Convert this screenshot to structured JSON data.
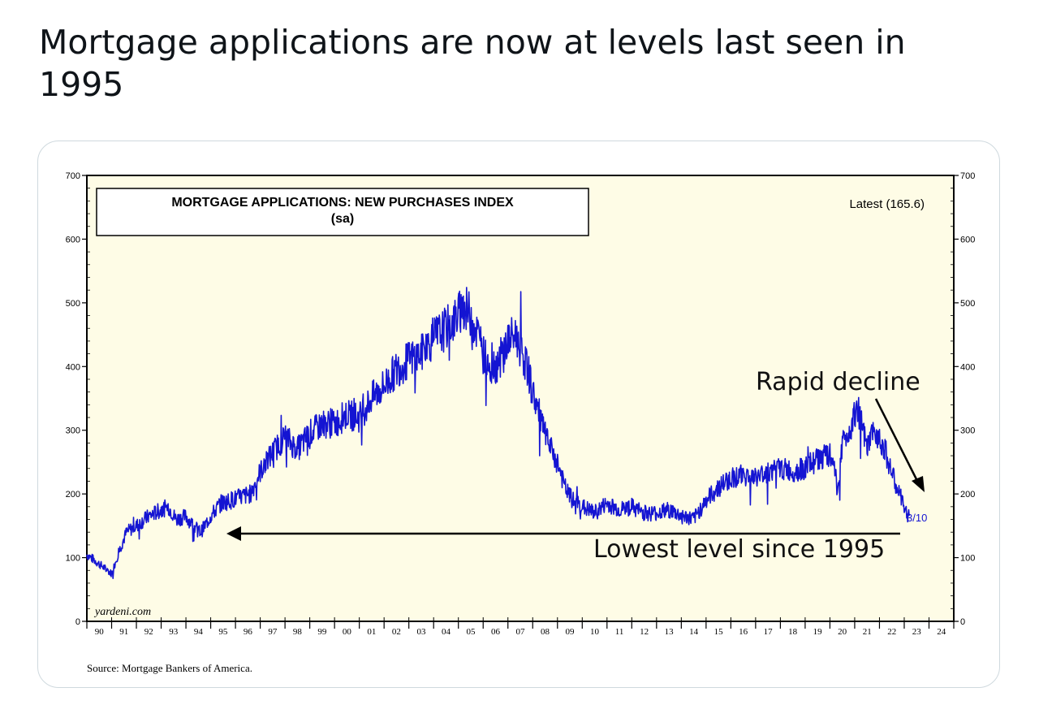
{
  "tweet": {
    "text": "Mortgage applications are now at levels last seen in 1995"
  },
  "colors": {
    "plot_bg": "#fefce6",
    "series": "#1414d2",
    "axis": "#000000",
    "text": "#0f1419",
    "card_border": "#cfd9de"
  },
  "chart_data": {
    "type": "line",
    "title": "MORTGAGE APPLICATIONS: NEW PURCHASES INDEX",
    "subtitle": "(sa)",
    "latest_label": "Latest (165.6)",
    "watermark": "yardeni.com",
    "source": "Source: Mortgage Bankers of America.",
    "date_label": "3/10",
    "annotations": {
      "rapid_decline": "Rapid decline",
      "lowest_level": "Lowest level since 1995"
    },
    "xlim": [
      1990,
      2025
    ],
    "ylim": [
      0,
      700
    ],
    "y_ticks": [
      0,
      100,
      200,
      300,
      400,
      500,
      600,
      700
    ],
    "x_tick_labels": [
      "90",
      "91",
      "92",
      "93",
      "94",
      "95",
      "96",
      "97",
      "98",
      "99",
      "00",
      "01",
      "02",
      "03",
      "04",
      "05",
      "06",
      "07",
      "08",
      "09",
      "10",
      "11",
      "12",
      "13",
      "14",
      "15",
      "16",
      "17",
      "18",
      "19",
      "20",
      "21",
      "22",
      "23",
      "24"
    ],
    "grid": false,
    "legend": "none",
    "series": [
      {
        "x": [
          1990.0,
          1990.5,
          1991.0,
          1991.3,
          1991.6,
          1992.0,
          1992.5,
          1993.0,
          1993.3,
          1993.6,
          1994.0,
          1994.3,
          1994.6,
          1995.0,
          1995.4,
          1995.8,
          1996.2,
          1996.6,
          1997.0,
          1997.5,
          1998.0,
          1998.5,
          1999.0,
          1999.5,
          2000.0,
          2000.5,
          2001.0,
          2001.5,
          2002.0,
          2002.5,
          2003.0,
          2003.5,
          2004.0,
          2004.5,
          2004.9,
          2005.2,
          2005.5,
          2005.8,
          2006.0,
          2006.3,
          2006.6,
          2007.0,
          2007.3,
          2007.5,
          2007.8,
          2008.0,
          2008.3,
          2008.6,
          2009.0,
          2009.3,
          2009.6,
          2010.0,
          2010.5,
          2011.0,
          2011.5,
          2012.0,
          2012.5,
          2013.0,
          2013.5,
          2014.0,
          2014.5,
          2015.0,
          2015.5,
          2016.0,
          2016.5,
          2017.0,
          2017.5,
          2018.0,
          2018.5,
          2019.0,
          2019.5,
          2020.0,
          2020.2,
          2020.3,
          2020.5,
          2020.8,
          2021.0,
          2021.2,
          2021.5,
          2021.8,
          2022.0,
          2022.3,
          2022.6,
          2022.9,
          2023.0,
          2023.2
        ],
        "y": [
          105,
          90,
          75,
          110,
          140,
          150,
          165,
          175,
          180,
          160,
          165,
          150,
          140,
          165,
          185,
          190,
          195,
          200,
          235,
          265,
          290,
          270,
          295,
          310,
          310,
          325,
          320,
          350,
          370,
          395,
          410,
          420,
          445,
          460,
          475,
          495,
          480,
          450,
          420,
          400,
          405,
          440,
          450,
          430,
          395,
          360,
          320,
          280,
          250,
          210,
          190,
          180,
          170,
          185,
          175,
          180,
          170,
          170,
          175,
          165,
          160,
          190,
          210,
          225,
          230,
          225,
          235,
          240,
          235,
          240,
          255,
          260,
          245,
          200,
          280,
          300,
          330,
          320,
          270,
          300,
          290,
          260,
          220,
          190,
          175,
          165.6
        ]
      }
    ]
  }
}
